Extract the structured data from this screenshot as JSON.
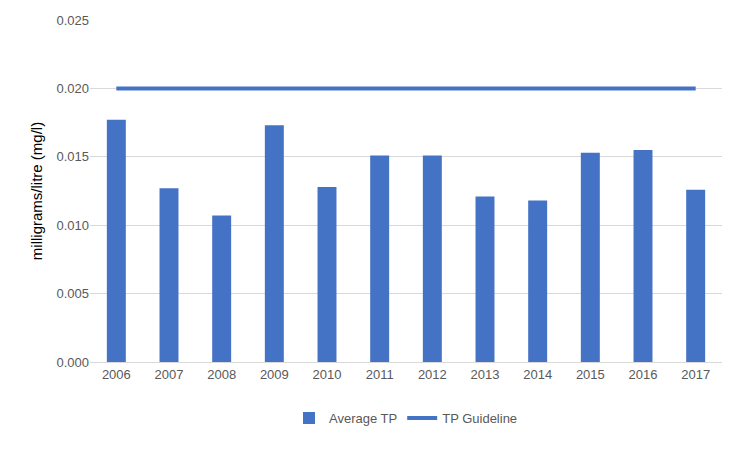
{
  "chart_data": {
    "type": "bar",
    "y_label": "milligrams/litre (mg/l)",
    "categories": [
      "2006",
      "2007",
      "2008",
      "2009",
      "2010",
      "2011",
      "2012",
      "2013",
      "2014",
      "2015",
      "2016",
      "2017"
    ],
    "series": [
      {
        "name": "Average TP",
        "type": "bar",
        "color": "#4472c4",
        "values": [
          0.0177,
          0.0127,
          0.0107,
          0.0173,
          0.0128,
          0.0151,
          0.0151,
          0.0121,
          0.0118,
          0.0153,
          0.0155,
          0.0126
        ]
      },
      {
        "name": "TP Guideline",
        "type": "line",
        "color": "#4472c4",
        "values": [
          0.02,
          0.02,
          0.02,
          0.02,
          0.02,
          0.02,
          0.02,
          0.02,
          0.02,
          0.02,
          0.02,
          0.02
        ]
      }
    ],
    "ylim": [
      0,
      0.025
    ],
    "yticks": [
      {
        "value": 0,
        "label": "0.000"
      },
      0.005,
      {
        "value": 0.01,
        "label": "0.010"
      },
      0.015,
      {
        "value": 0.02,
        "label": "0.020"
      },
      0.025
    ],
    "grid": true,
    "legend": "bottom"
  }
}
